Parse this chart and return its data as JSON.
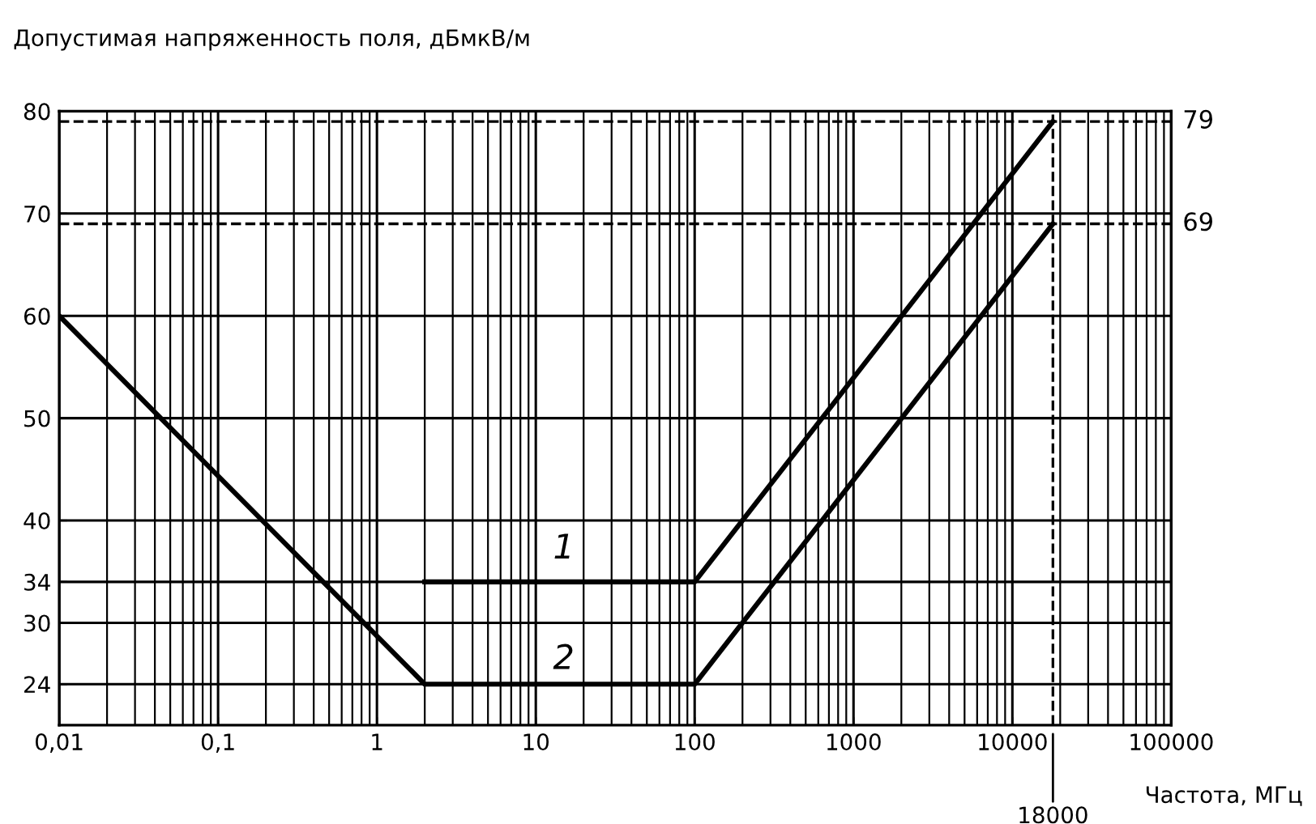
{
  "chart_data": {
    "type": "line",
    "xlabel": "Частота, МГц",
    "ylabel": "Допустимая напряженность поля, дБмкВ/м",
    "log": "x",
    "xlim": [
      0.01,
      100000
    ],
    "xticks": [
      {
        "value": 0.01,
        "label": "0,01"
      },
      {
        "value": 0.1,
        "label": "0,1"
      },
      1,
      10,
      100,
      1000,
      10000,
      100000
    ],
    "ylim": [
      20,
      80
    ],
    "yticks": [
      24,
      30,
      34,
      40,
      50,
      60,
      70,
      80
    ],
    "grid": true,
    "series": [
      {
        "color": "#000000",
        "x": [
          2,
          100,
          18000
        ],
        "values": [
          34,
          34,
          79
        ]
      },
      {
        "color": "#000000",
        "x": [
          0.01,
          2,
          100,
          18000
        ],
        "values": [
          60,
          24,
          24,
          69
        ]
      }
    ],
    "ref_lines": [
      {
        "axis": "x",
        "value": 18000,
        "label": "18000",
        "line_style": "dashed",
        "color": "#000000"
      },
      {
        "axis": "y",
        "value": 79,
        "label": "79",
        "line_style": "dashed",
        "color": "#000000"
      },
      {
        "axis": "y",
        "value": 69,
        "label": "69",
        "line_style": "dashed",
        "color": "#000000"
      }
    ],
    "annotations": [
      {
        "text": "1",
        "x": 15,
        "y": 37.2
      },
      {
        "text": "2",
        "x": 15,
        "y": 26.4
      }
    ]
  }
}
